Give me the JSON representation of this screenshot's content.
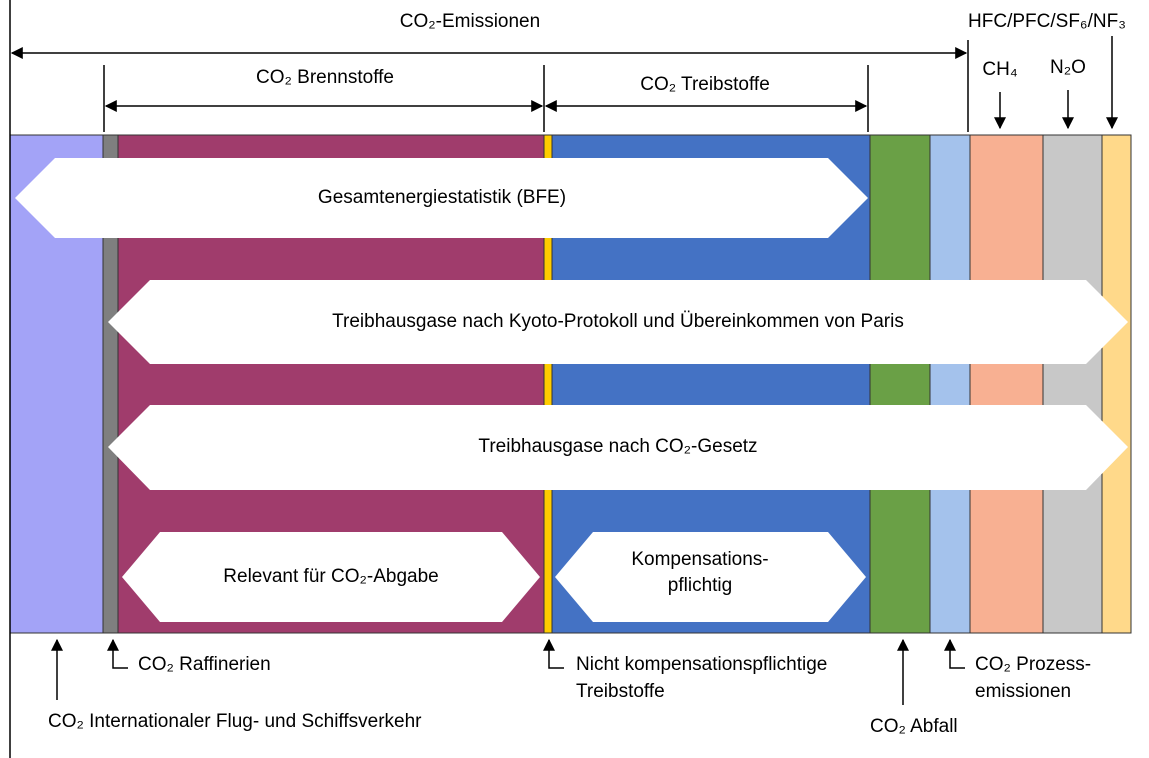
{
  "top": {
    "emissions": "CO₂-Emissionen",
    "fuels": "CO₂ Brennstoffe",
    "motor_fuels": "CO₂ Treibstoffe",
    "f_gases": "HFC/PFC/SF₆/NF₃",
    "ch4": "CH₄",
    "n2o": "N₂O"
  },
  "bands": {
    "energy_statistics": "Gesamtenergiestatistik (BFE)",
    "kyoto": "Treibhausgase nach Kyoto-Protokoll und Übereinkommen von Paris",
    "co2_law": "Treibhausgase nach CO₂-Gesetz",
    "levy": "Relevant für CO₂-Abgabe",
    "compensation": [
      "Kompensations-",
      "pflichtig"
    ]
  },
  "bottom": {
    "aviation": "CO₂ Internationaler Flug- und Schiffsverkehr",
    "refineries": "CO₂ Raffinerien",
    "non_compensation": [
      "Nicht kompensationspflichtige",
      "Treibstoffe"
    ],
    "waste": "CO₂ Abfall",
    "process": [
      "CO₂ Prozess-",
      "emissionen"
    ]
  }
}
